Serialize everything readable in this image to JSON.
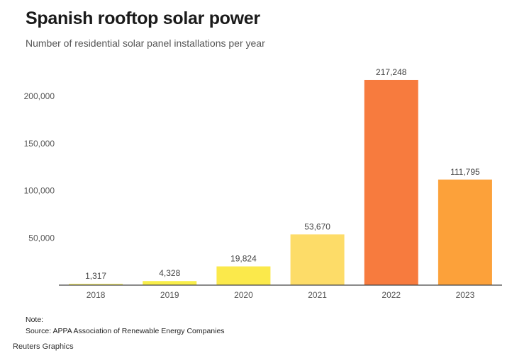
{
  "chart_data": {
    "type": "bar",
    "title": "Spanish rooftop solar power",
    "subtitle": "Number of residential solar panel installations per year",
    "categories": [
      "2018",
      "2019",
      "2020",
      "2021",
      "2022",
      "2023"
    ],
    "values": [
      1317,
      4328,
      19824,
      53670,
      217248,
      111795
    ],
    "value_labels": [
      "1,317",
      "4,328",
      "19,824",
      "53,670",
      "217,248",
      "111,795"
    ],
    "colors": [
      "#f3e85a",
      "#f8ee4a",
      "#fbe94b",
      "#fddc68",
      "#f77b3e",
      "#fca13a"
    ],
    "yticks": [
      50000,
      100000,
      150000,
      200000
    ],
    "ytick_labels": [
      "50,000",
      "100,000",
      "150,000",
      "200,000"
    ],
    "ylim": [
      0,
      225000
    ],
    "grid": false,
    "legend": "none"
  },
  "footer": {
    "note": "Note:",
    "source": "Source: APPA Association of Renewable Energy Companies",
    "credit": "Reuters Graphics"
  }
}
